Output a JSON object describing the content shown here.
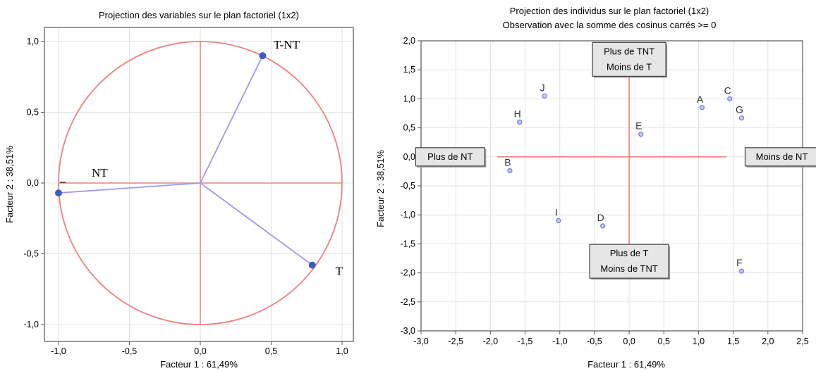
{
  "chart_data": [
    {
      "type": "scatter",
      "title": "Projection des variables sur le plan factoriel (1x2)",
      "xlabel": "Facteur 1 : 61,49%",
      "ylabel": "Facteur 2 : 38,51%",
      "xlim": [
        -1.0,
        1.0
      ],
      "ylim": [
        -1.0,
        1.0
      ],
      "xticks": [
        "-1,0",
        "-0,5",
        "0,0",
        "0,5",
        "1,0"
      ],
      "yticks": [
        "1,0",
        "0,5",
        "0,0",
        "-0,5",
        "-1,0"
      ],
      "grid": true,
      "unit_circle": true,
      "points": [
        {
          "label": "T-NT",
          "x": 0.44,
          "y": 0.9
        },
        {
          "label": "NT",
          "x": -1.0,
          "y": -0.07
        },
        {
          "label": "T",
          "x": 0.79,
          "y": -0.58
        }
      ],
      "colors": {
        "circle": "#f08080",
        "vector": "#9a9af0",
        "point": "#3a5fc8"
      }
    },
    {
      "type": "scatter",
      "title": "Projection des individus sur le plan factoriel (1x2)",
      "subtitle": "Observation avec la somme des cosinus carrés >= 0",
      "xlabel": "Facteur 1 : 61,49%",
      "ylabel": "Facteur 2 : 38,51%",
      "xlim": [
        -3.0,
        2.5
      ],
      "ylim": [
        -3.0,
        2.0
      ],
      "xticks": [
        "-3,0",
        "-2,5",
        "-2,0",
        "-1,5",
        "-1,0",
        "-0,5",
        "0,0",
        "0,5",
        "1,0",
        "1,5",
        "2,0",
        "2,5"
      ],
      "yticks": [
        "2,0",
        "1,5",
        "1,0",
        "0,5",
        "0,0",
        "-0,5",
        "-1,0",
        "-1,5",
        "-2,0",
        "-2,5",
        "-3,0"
      ],
      "grid": true,
      "points": [
        {
          "label": "A",
          "x": 1.05,
          "y": 0.85
        },
        {
          "label": "B",
          "x": -1.72,
          "y": -0.24
        },
        {
          "label": "C",
          "x": 1.45,
          "y": 1.0
        },
        {
          "label": "D",
          "x": -0.38,
          "y": -1.19
        },
        {
          "label": "E",
          "x": 0.17,
          "y": 0.39
        },
        {
          "label": "F",
          "x": 1.62,
          "y": -1.97
        },
        {
          "label": "G",
          "x": 1.62,
          "y": 0.67
        },
        {
          "label": "H",
          "x": -1.58,
          "y": 0.6
        },
        {
          "label": "I",
          "x": -1.02,
          "y": -1.1
        },
        {
          "label": "J",
          "x": -1.22,
          "y": 1.05
        }
      ],
      "boxes": {
        "top": [
          "Plus de TNT",
          "Moins de T"
        ],
        "bottom": [
          "Plus de T",
          "Moins de TNT"
        ],
        "left": [
          "Plus de NT"
        ],
        "right": [
          "Moins de NT"
        ]
      },
      "colors": {
        "crosshair": "#f08080",
        "point": "#7b7bf0"
      }
    }
  ]
}
